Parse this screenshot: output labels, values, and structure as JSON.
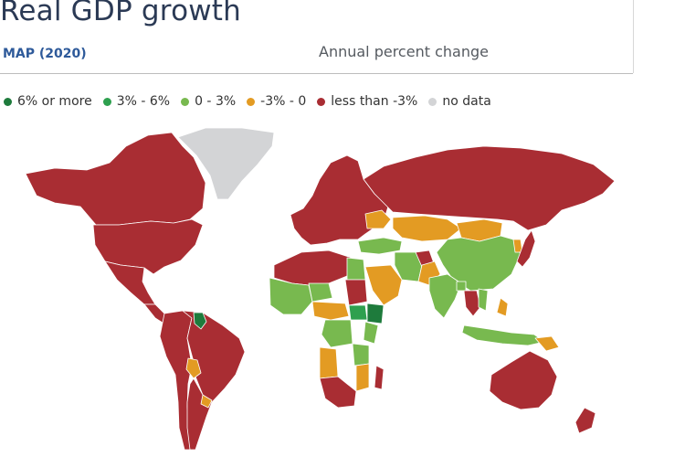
{
  "header": {
    "title": "Real GDP growth",
    "tab_label": "MAP (2020)",
    "subtitle": "Annual percent change"
  },
  "legend": {
    "items": [
      {
        "label": "6% or more",
        "color": "#1e7b3c"
      },
      {
        "label": "3% - 6%",
        "color": "#2ea04f"
      },
      {
        "label": "0 - 3%",
        "color": "#78b94f"
      },
      {
        "label": "-3% - 0",
        "color": "#e39b23"
      },
      {
        "label": "less than -3%",
        "color": "#a92d33"
      },
      {
        "label": "no data",
        "color": "#d3d4d6"
      }
    ]
  },
  "map": {
    "year": 2020,
    "measure": "Real GDP growth, annual percent change",
    "regions": [
      {
        "name": "Canada",
        "category": "less than -3%"
      },
      {
        "name": "United States",
        "category": "less than -3%"
      },
      {
        "name": "Mexico",
        "category": "less than -3%"
      },
      {
        "name": "Greenland",
        "category": "no data"
      },
      {
        "name": "Central America",
        "category": "less than -3%"
      },
      {
        "name": "Guyana",
        "category": "6% or more"
      },
      {
        "name": "Brazil",
        "category": "less than -3%"
      },
      {
        "name": "Paraguay",
        "category": "-3% - 0"
      },
      {
        "name": "Uruguay",
        "category": "-3% - 0"
      },
      {
        "name": "Western South America",
        "category": "less than -3%"
      },
      {
        "name": "Argentina",
        "category": "less than -3%"
      },
      {
        "name": "Europe",
        "category": "less than -3%"
      },
      {
        "name": "Russia",
        "category": "less than -3%"
      },
      {
        "name": "Ukraine",
        "category": "-3% - 0"
      },
      {
        "name": "Turkey",
        "category": "0 - 3%"
      },
      {
        "name": "Kazakhstan",
        "category": "-3% - 0"
      },
      {
        "name": "Mongolia",
        "category": "-3% - 0"
      },
      {
        "name": "China",
        "category": "0 - 3%"
      },
      {
        "name": "Japan",
        "category": "less than -3%"
      },
      {
        "name": "Korea",
        "category": "-3% - 0"
      },
      {
        "name": "Iran",
        "category": "0 - 3%"
      },
      {
        "name": "Afghanistan",
        "category": "less than -3%"
      },
      {
        "name": "Pakistan",
        "category": "-3% - 0"
      },
      {
        "name": "India",
        "category": "0 - 3%"
      },
      {
        "name": "Bangladesh",
        "category": "0 - 3%"
      },
      {
        "name": "Thailand",
        "category": "less than -3%"
      },
      {
        "name": "Vietnam",
        "category": "0 - 3%"
      },
      {
        "name": "Indonesia",
        "category": "0 - 3%"
      },
      {
        "name": "Philippines",
        "category": "-3% - 0"
      },
      {
        "name": "Papua New Guinea",
        "category": "-3% - 0"
      },
      {
        "name": "Australia",
        "category": "less than -3%"
      },
      {
        "name": "New Zealand",
        "category": "less than -3%"
      },
      {
        "name": "Saudi Arabia",
        "category": "-3% - 0"
      },
      {
        "name": "Egypt",
        "category": "0 - 3%"
      },
      {
        "name": "Sudan",
        "category": "less than -3%"
      },
      {
        "name": "Ethiopia",
        "category": "6% or more"
      },
      {
        "name": "Kenya",
        "category": "0 - 3%"
      },
      {
        "name": "North Africa",
        "category": "less than -3%"
      },
      {
        "name": "Niger",
        "category": "0 - 3%"
      },
      {
        "name": "West Africa",
        "category": "0 - 3%"
      },
      {
        "name": "Central Africa",
        "category": "-3% - 0"
      },
      {
        "name": "South Sudan",
        "category": "3% - 6%"
      },
      {
        "name": "DR Congo",
        "category": "0 - 3%"
      },
      {
        "name": "Angola",
        "category": "-3% - 0"
      },
      {
        "name": "Southern Africa",
        "category": "less than -3%"
      },
      {
        "name": "Tanzania",
        "category": "0 - 3%"
      },
      {
        "name": "Mozambique",
        "category": "-3% - 0"
      },
      {
        "name": "Madagascar",
        "category": "less than -3%"
      }
    ]
  }
}
